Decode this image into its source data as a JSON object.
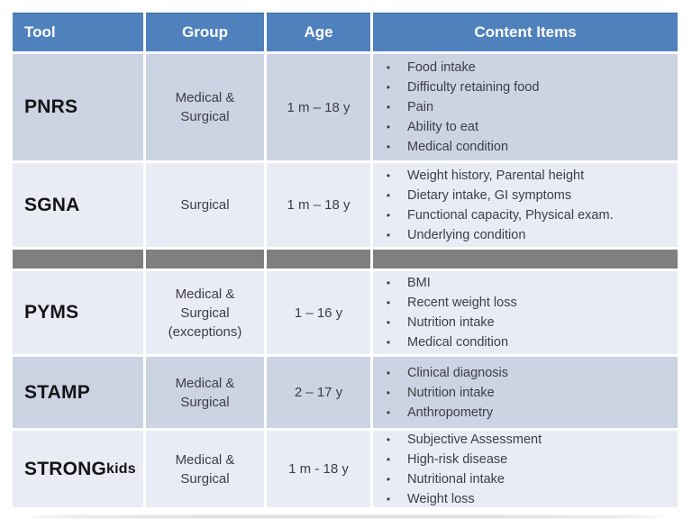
{
  "header": {
    "tool": "Tool",
    "group": "Group",
    "age": "Age",
    "content": "Content Items"
  },
  "rows": [
    {
      "tool": "PNRS",
      "tool_sub": "",
      "group": "Medical &\nSurgical",
      "age": "1 m – 18 y",
      "items": [
        "Food intake",
        "Difficulty retaining food",
        "Pain",
        "Ability to eat",
        "Medical condition"
      ]
    },
    {
      "tool": "SGNA",
      "tool_sub": "",
      "group": "Surgical",
      "age": "1 m – 18 y",
      "items": [
        "Weight history, Parental height",
        "Dietary intake, GI symptoms",
        "Functional capacity, Physical exam.",
        "Underlying condition"
      ]
    },
    {
      "tool": "PYMS",
      "tool_sub": "",
      "group": "Medical  &\nSurgical\n(exceptions)",
      "age": "1 – 16 y",
      "items": [
        "BMI",
        "Recent weight loss",
        "Nutrition intake",
        "Medical condition"
      ]
    },
    {
      "tool": "STAMP",
      "tool_sub": "",
      "group": "Medical &\nSurgical",
      "age": "2 – 17 y",
      "items": [
        "Clinical diagnosis",
        "Nutrition intake",
        "Anthropometry"
      ]
    },
    {
      "tool": "STRONG",
      "tool_sub": "kids",
      "group": "Medical &\nSurgical",
      "age": "1 m  - 18 y",
      "items": [
        "Subjective Assessment",
        "High-risk disease",
        "Nutritional intake",
        "Weight loss"
      ]
    }
  ],
  "bullet_glyph": "•",
  "colors": {
    "header_bg": "#4f81bd",
    "header_text": "#ffffff",
    "band_dark": "#ccd3e2",
    "band_light": "#e9ecf5",
    "divider_gray": "#7f7f7f",
    "body_text": "#3e3e46",
    "tool_text": "#141416",
    "page_bg": "#ffffff"
  }
}
